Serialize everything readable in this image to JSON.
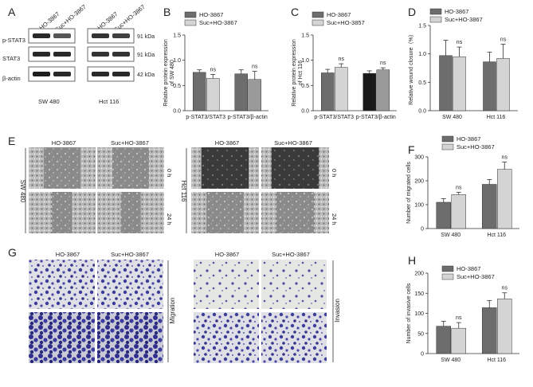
{
  "panel_letters": {
    "A": "A",
    "B": "B",
    "C": "C",
    "D": "D",
    "E": "E",
    "F": "F",
    "G": "G",
    "H": "H"
  },
  "colors": {
    "dark": "#6d6d6d",
    "light": "#d4d4d4",
    "black": "#1a1a1a",
    "mid": "#9a9a9a",
    "stain": "#3c3c9c",
    "micro": "#5a5a5a"
  },
  "western": {
    "cols_left": [
      "HO-3867",
      "Suc+HO-3867"
    ],
    "cols_right": [
      "HO-3867",
      "Suc+HO-3867"
    ],
    "rows": [
      "p-STAT3",
      "STAT3",
      "β-actin"
    ],
    "kda": [
      "91 kDa",
      "91 kDa",
      "42 kDa"
    ],
    "cell_lines": [
      "SW 480",
      "Hct 116"
    ]
  },
  "wound": {
    "cols": [
      "HO-3867",
      "Suc+HO-3867"
    ],
    "time": [
      "0 h",
      "24 h"
    ],
    "cell_lines": [
      "SW 480",
      "Hct 116"
    ]
  },
  "transwell": {
    "cols": [
      "HO-3867",
      "Suc+HO-3867"
    ],
    "side": [
      "Migration",
      "Invasion"
    ]
  },
  "chart_data": [
    {
      "panel": "B",
      "type": "bar",
      "categories": [
        "p-STAT3/STAT3",
        "p-STAT3/β-actin"
      ],
      "series": [
        {
          "name": "HO-3867",
          "values": [
            0.76,
            0.73
          ],
          "errors": [
            0.05,
            0.08
          ]
        },
        {
          "name": "Suc+HO-3867",
          "values": [
            0.64,
            0.62
          ],
          "errors": [
            0.08,
            0.16
          ]
        }
      ],
      "ylabel": "Relative protein expression of SW 480",
      "ylim": [
        0,
        1.5
      ],
      "yticks": [
        "0.0",
        "0.5",
        "1.0",
        "1.5"
      ],
      "annotations": [
        "ns",
        "ns"
      ],
      "legend": "top"
    },
    {
      "panel": "C",
      "type": "bar",
      "categories": [
        "p-STAT3/STAT3",
        "p-STAT3/β-actin"
      ],
      "series": [
        {
          "name": "HO-3867",
          "values": [
            0.75,
            0.74
          ],
          "errors": [
            0.07,
            0.05
          ]
        },
        {
          "name": "Suc+HO-3857",
          "values": [
            0.86,
            0.81
          ],
          "errors": [
            0.07,
            0.04
          ]
        }
      ],
      "ylabel": "Relative protein expression of Hct 116",
      "ylim": [
        0,
        1.5
      ],
      "yticks": [
        "0.0",
        "0.5",
        "1.0",
        "1.5"
      ],
      "annotations": [
        "ns",
        "ns"
      ],
      "legend": "top"
    },
    {
      "panel": "D",
      "type": "bar",
      "categories": [
        "SW 480",
        "Hct 116"
      ],
      "series": [
        {
          "name": "HO-3867",
          "values": [
            0.97,
            0.86
          ],
          "errors": [
            0.27,
            0.17
          ]
        },
        {
          "name": "Suc+HO-3867",
          "values": [
            0.95,
            0.92
          ],
          "errors": [
            0.17,
            0.25
          ]
        }
      ],
      "ylabel": "Relative wound closure（%）",
      "ylim": [
        0,
        1.5
      ],
      "yticks": [
        "0.0",
        "0.5",
        "1.0",
        "1.5"
      ],
      "annotations": [
        "ns",
        "ns"
      ],
      "legend": "top"
    },
    {
      "panel": "F",
      "type": "bar",
      "categories": [
        "SW 480",
        "Hct 116"
      ],
      "series": [
        {
          "name": "HO-3867",
          "values": [
            110,
            185
          ],
          "errors": [
            15,
            20
          ]
        },
        {
          "name": "Suc+HO-3867",
          "values": [
            142,
            248
          ],
          "errors": [
            10,
            30
          ]
        }
      ],
      "ylabel": "Number of migrated cells",
      "ylim": [
        0,
        300
      ],
      "yticks": [
        "0",
        "100",
        "200",
        "300"
      ],
      "annotations": [
        "ns",
        "ns"
      ],
      "legend": "top"
    },
    {
      "panel": "H",
      "type": "bar",
      "categories": [
        "SW 480",
        "Hct 116"
      ],
      "series": [
        {
          "name": "HO-3867",
          "values": [
            68,
            114
          ],
          "errors": [
            12,
            18
          ]
        },
        {
          "name": "Suc+HO-3867",
          "values": [
            63,
            136
          ],
          "errors": [
            14,
            15
          ]
        }
      ],
      "ylabel": "Number of invasive cells",
      "ylim": [
        0,
        200
      ],
      "yticks": [
        "0",
        "50",
        "100",
        "150",
        "200"
      ],
      "annotations": [
        "ns",
        "ns"
      ],
      "legend": "top"
    }
  ]
}
